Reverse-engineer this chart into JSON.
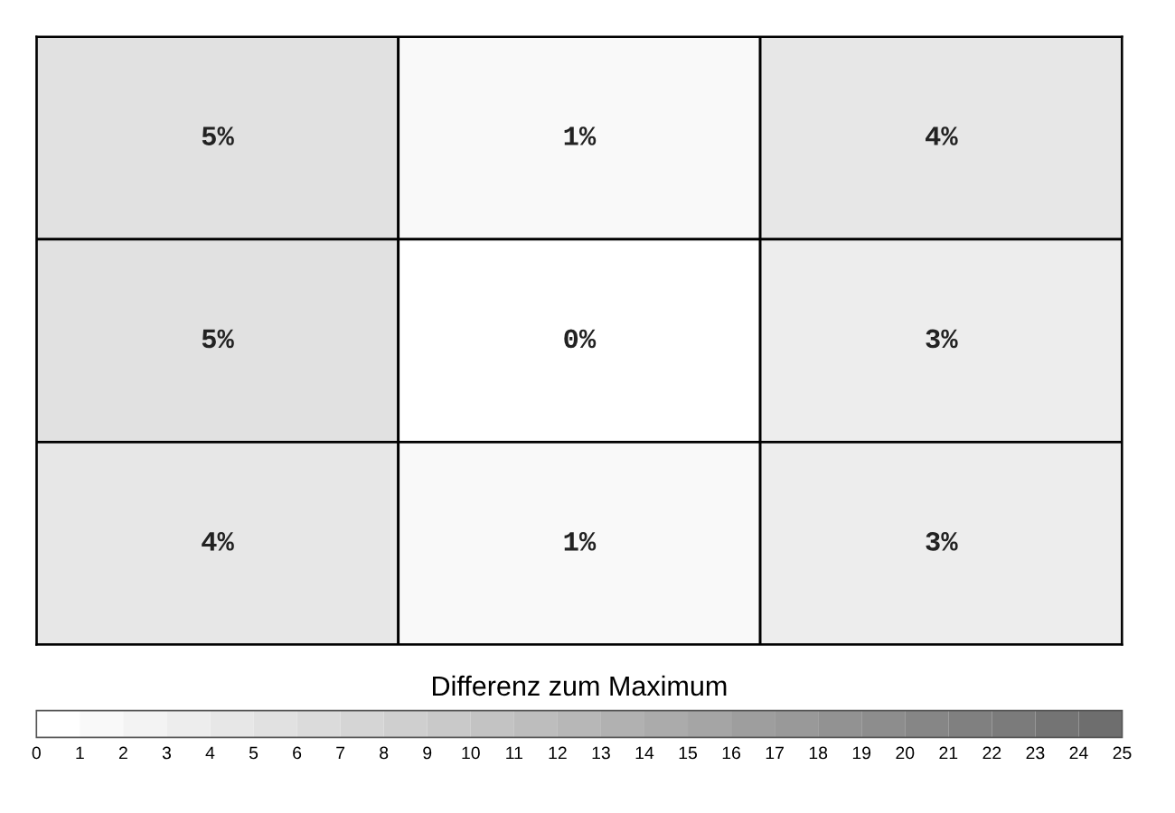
{
  "chart_data": {
    "type": "heatmap",
    "categories": [
      null,
      null,
      null
    ],
    "y_categories": [
      null,
      null,
      null
    ],
    "cells": [
      [
        5,
        1,
        4
      ],
      [
        5,
        0,
        3
      ],
      [
        4,
        1,
        3
      ]
    ],
    "cell_labels": [
      [
        "5%",
        "1%",
        "4%"
      ],
      [
        "5%",
        "0%",
        "3%"
      ],
      [
        "4%",
        "1%",
        "3%"
      ]
    ],
    "clim": [
      0,
      25
    ],
    "cticks": [
      0,
      1,
      2,
      3,
      4,
      5,
      6,
      7,
      8,
      9,
      10,
      11,
      12,
      13,
      14,
      15,
      16,
      17,
      18,
      19,
      20,
      21,
      22,
      23,
      24,
      25
    ],
    "clabel": "Differenz zum Maximum"
  }
}
